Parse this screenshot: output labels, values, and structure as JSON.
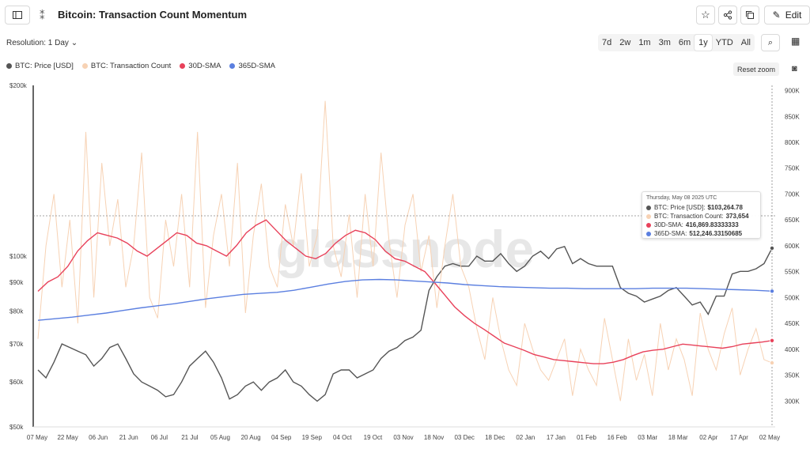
{
  "header": {
    "title": "Bitcoin: Transaction Count Momentum",
    "edit_label": "Edit"
  },
  "toolbar": {
    "resolution_label": "Resolution: 1 Day",
    "ranges": [
      "7d",
      "2w",
      "1m",
      "3m",
      "6m",
      "1y",
      "YTD",
      "All"
    ],
    "active_range": "1y",
    "reset_zoom_label": "Reset zoom"
  },
  "legend": [
    {
      "label": "BTC: Price [USD]",
      "color": "#555555"
    },
    {
      "label": "BTC: Transaction Count",
      "color": "#f7d2b4"
    },
    {
      "label": "30D-SMA",
      "color": "#e8415a"
    },
    {
      "label": "365D-SMA",
      "color": "#5b7fe0"
    }
  ],
  "watermark": "glassnode",
  "tooltip": {
    "date": "Thursday, May 08 2025 UTC",
    "rows": [
      {
        "label": "BTC: Price [USD]:",
        "value": "$103,264.78",
        "color": "#555555"
      },
      {
        "label": "BTC: Transaction Count:",
        "value": "373,654",
        "color": "#f7d2b4"
      },
      {
        "label": "30D-SMA:",
        "value": "416,869.83333333",
        "color": "#e8415a"
      },
      {
        "label": "365D-SMA:",
        "value": "512,246.33150685",
        "color": "#5b7fe0"
      }
    ]
  },
  "chart_data": {
    "type": "line",
    "x_ticks": [
      "07 May",
      "22 May",
      "06 Jun",
      "21 Jun",
      "06 Jul",
      "21 Jul",
      "05 Aug",
      "20 Aug",
      "04 Sep",
      "19 Sep",
      "04 Oct",
      "19 Oct",
      "03 Nov",
      "18 Nov",
      "03 Dec",
      "18 Dec",
      "02 Jan",
      "17 Jan",
      "01 Feb",
      "16 Feb",
      "03 Mar",
      "18 Mar",
      "02 Apr",
      "17 Apr",
      "02 May"
    ],
    "y_left": {
      "scale": "log",
      "range": [
        50000,
        200000
      ],
      "ticks": [
        50000,
        60000,
        70000,
        80000,
        90000,
        100000,
        200000
      ],
      "tick_labels": [
        "$50k",
        "$60k",
        "$70k",
        "$80k",
        "$90k",
        "$100k",
        "$200k"
      ]
    },
    "y_right": {
      "scale": "linear",
      "range": [
        250000,
        910000
      ],
      "ticks": [
        300000,
        350000,
        400000,
        450000,
        500000,
        550000,
        600000,
        650000,
        700000,
        750000,
        800000,
        850000,
        900000
      ],
      "tick_labels": [
        "300K",
        "350K",
        "400K",
        "450K",
        "500K",
        "550K",
        "600K",
        "650K",
        "700K",
        "750K",
        "800K",
        "850K",
        "900K"
      ]
    },
    "series": [
      {
        "name": "BTC: Price [USD]",
        "axis": "left",
        "color": "#555555",
        "values": [
          63000,
          61000,
          65000,
          70000,
          69000,
          68000,
          67000,
          64000,
          66000,
          69000,
          70000,
          66000,
          62000,
          60000,
          59000,
          58000,
          56500,
          57000,
          60000,
          64000,
          66000,
          68000,
          65000,
          61000,
          56000,
          57000,
          59000,
          60000,
          58000,
          60000,
          61000,
          63000,
          60000,
          59000,
          57000,
          55500,
          57000,
          62000,
          63000,
          63000,
          61000,
          62000,
          63000,
          66000,
          68000,
          69000,
          71000,
          72000,
          74000,
          87000,
          92000,
          96000,
          97000,
          96000,
          96000,
          100000,
          98000,
          98000,
          101000,
          97000,
          94000,
          96000,
          100000,
          102000,
          99000,
          103000,
          104000,
          97000,
          99000,
          97000,
          96000,
          96000,
          96000,
          88000,
          86000,
          85000,
          83000,
          84000,
          85000,
          87000,
          88000,
          85000,
          82000,
          83000,
          79000,
          85000,
          85000,
          93000,
          94000,
          94000,
          95000,
          97000,
          103264
        ]
      },
      {
        "name": "BTC: Transaction Count",
        "axis": "right",
        "color": "#f7d2b4",
        "values": [
          420000,
          600000,
          700000,
          520000,
          650000,
          450000,
          820000,
          500000,
          760000,
          600000,
          690000,
          520000,
          600000,
          780000,
          500000,
          460000,
          650000,
          560000,
          700000,
          520000,
          820000,
          480000,
          620000,
          700000,
          560000,
          760000,
          470000,
          620000,
          720000,
          560000,
          520000,
          680000,
          600000,
          740000,
          560000,
          620000,
          880000,
          600000,
          540000,
          660000,
          500000,
          700000,
          560000,
          780000,
          610000,
          500000,
          640000,
          700000,
          550000,
          620000,
          480000,
          600000,
          700000,
          560000,
          520000,
          440000,
          380000,
          500000,
          420000,
          360000,
          330000,
          450000,
          400000,
          360000,
          340000,
          380000,
          420000,
          310000,
          400000,
          360000,
          330000,
          460000,
          380000,
          300000,
          420000,
          340000,
          390000,
          310000,
          450000,
          360000,
          420000,
          380000,
          310000,
          470000,
          400000,
          360000,
          430000,
          480000,
          350000,
          400000,
          440000,
          380000,
          373654
        ]
      },
      {
        "name": "30D-SMA",
        "axis": "right",
        "color": "#e8415a",
        "values": [
          512000,
          530000,
          540000,
          560000,
          590000,
          610000,
          625000,
          620000,
          615000,
          605000,
          590000,
          580000,
          595000,
          610000,
          625000,
          620000,
          605000,
          600000,
          590000,
          580000,
          600000,
          625000,
          640000,
          650000,
          630000,
          610000,
          595000,
          580000,
          575000,
          585000,
          605000,
          620000,
          630000,
          625000,
          612000,
          590000,
          575000,
          570000,
          560000,
          550000,
          528000,
          505000,
          482000,
          465000,
          450000,
          438000,
          425000,
          412000,
          405000,
          398000,
          390000,
          385000,
          380000,
          378000,
          376000,
          374000,
          372000,
          372000,
          375000,
          380000,
          388000,
          395000,
          398000,
          400000,
          405000,
          410000,
          408000,
          406000,
          404000,
          402000,
          405000,
          410000,
          412000,
          414000,
          416869
        ]
      },
      {
        "name": "365D-SMA",
        "axis": "right",
        "color": "#5b7fe0",
        "values": [
          456000,
          459000,
          462000,
          466000,
          470000,
          475000,
          480000,
          484000,
          488000,
          493000,
          498000,
          502000,
          506000,
          508000,
          510000,
          514000,
          520000,
          526000,
          531000,
          534000,
          535000,
          534000,
          532000,
          530000,
          528000,
          525000,
          523000,
          521000,
          520000,
          519000,
          518000,
          518000,
          517000,
          517000,
          517000,
          517000,
          518000,
          518000,
          518000,
          517000,
          516000,
          515000,
          514000,
          512246
        ]
      }
    ]
  }
}
